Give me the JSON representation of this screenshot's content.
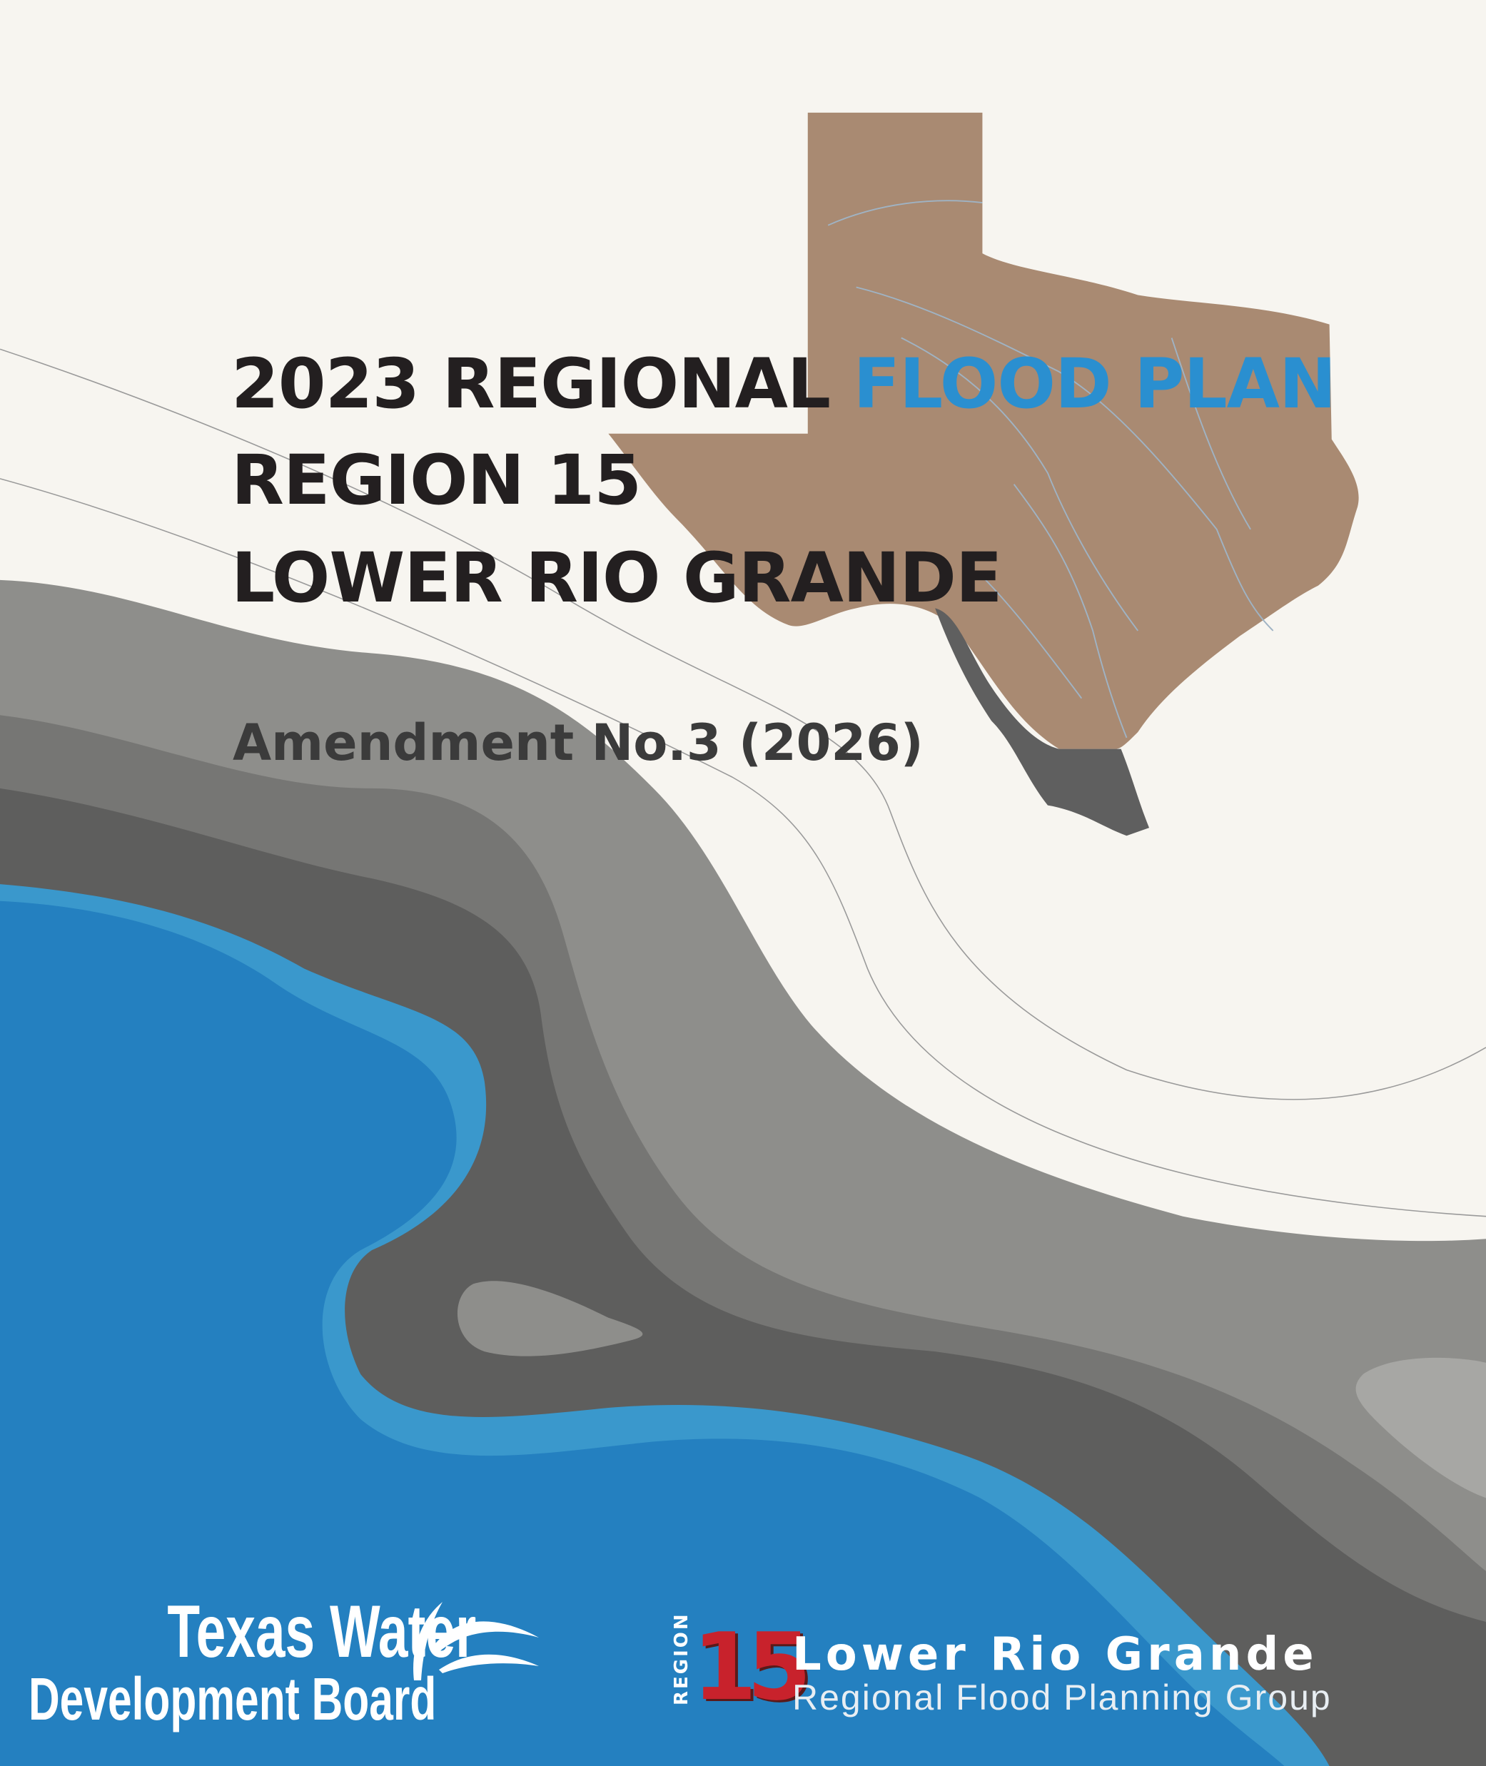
{
  "title": {
    "line1_part1": "2023 REGIONAL",
    "line1_part2": "FLOOD PLAN",
    "line2": "REGION 15",
    "line3": "LOWER RIO GRANDE"
  },
  "subtitle": "Amendment No.3 (2026)",
  "logos": {
    "twdb_line1": "Texas Water",
    "twdb_line2": "Development Board",
    "region_label": "REGION",
    "region_number": "15",
    "group_name": "Lower Rio Grande",
    "group_subtitle": "Regional Flood Planning Group"
  },
  "colors": {
    "background": "#f7f5f0",
    "accent_blue": "#2a8fd0",
    "texas_map": "#a98a72",
    "region15": "#5f5f5f",
    "water_blue": "#2480c0",
    "light_blue": "#3a98cc",
    "gray": "#8e8e8b",
    "region_red": "#c8222c"
  }
}
